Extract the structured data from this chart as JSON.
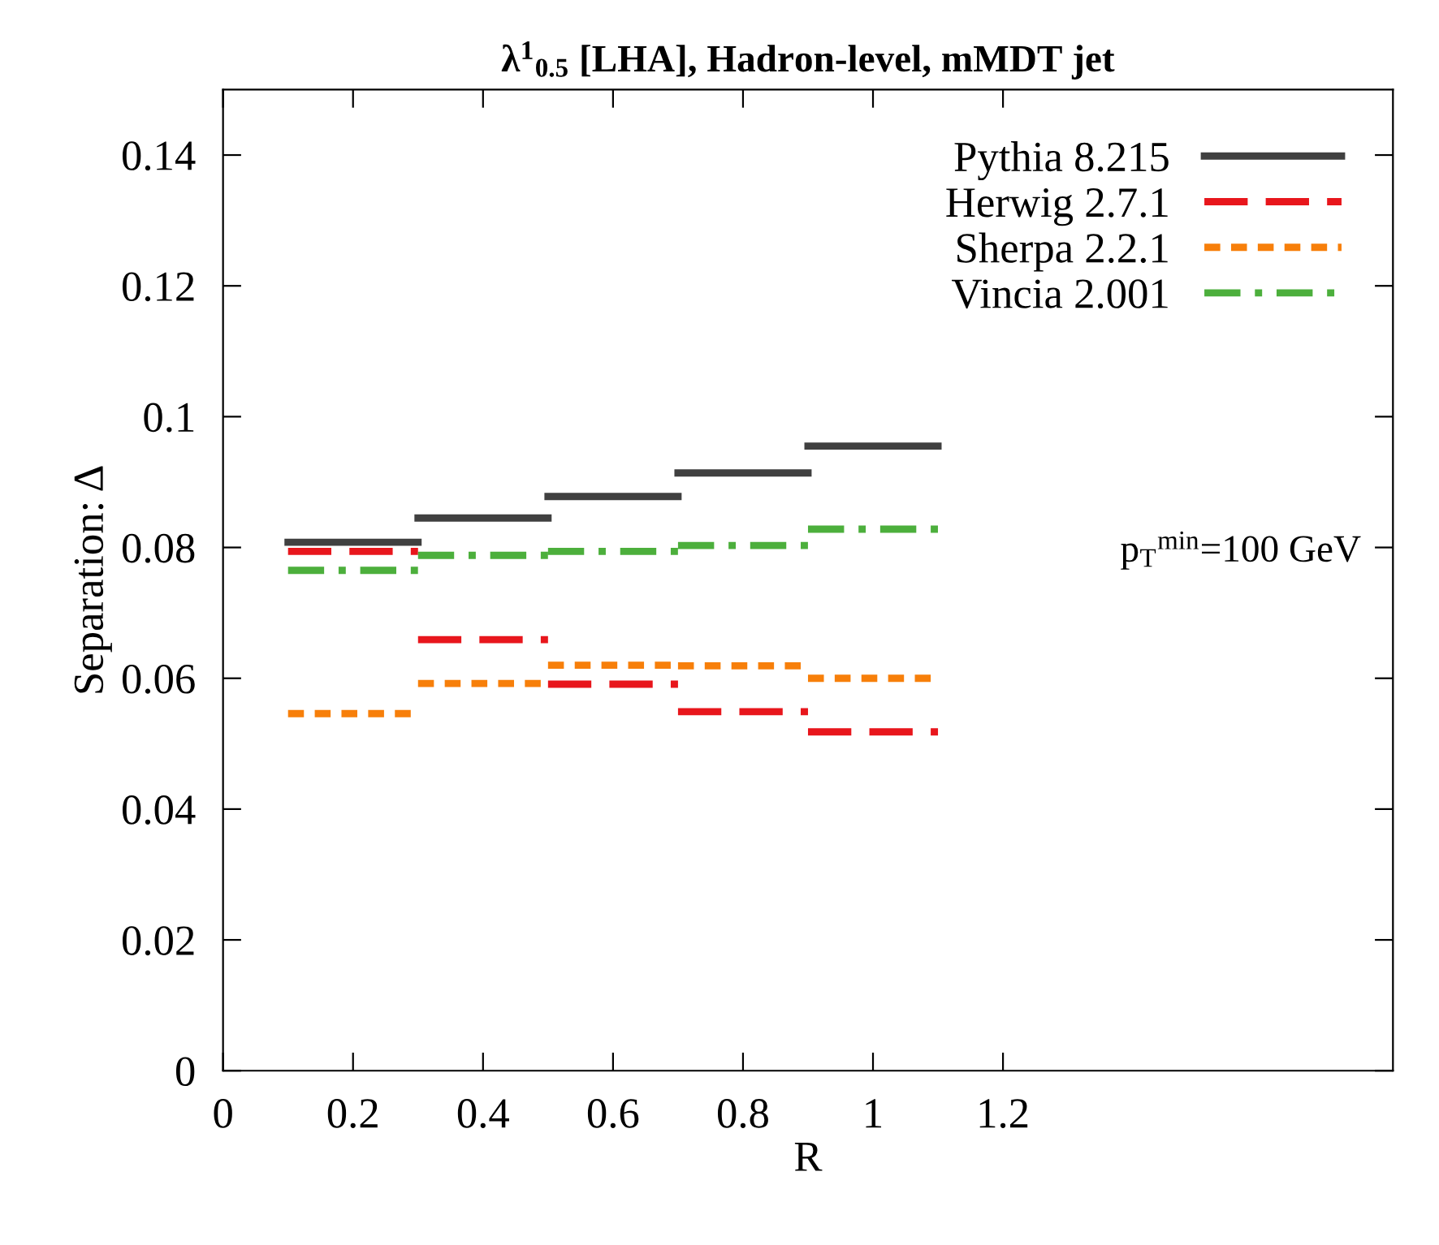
{
  "chart_data": {
    "type": "line",
    "title": "λ$^{1}$$_{0.5}$ [LHA], Hadron-level, mMDT jet",
    "xlabel": "R",
    "ylabel": "Separation: Δ",
    "x": [
      0.1,
      0.3,
      null,
      0.3,
      0.5,
      null,
      0.5,
      0.7,
      null,
      0.7,
      0.9,
      null,
      0.9,
      1.1
    ],
    "series": [
      {
        "name": "Pythia 8.215",
        "color": "#404040",
        "line_style": "solid",
        "values": [
          0.0808,
          0.0808,
          null,
          0.0845,
          0.0845,
          null,
          0.0878,
          0.0878,
          null,
          0.0914,
          0.0914,
          null,
          0.0955,
          0.0955
        ]
      },
      {
        "name": "Herwig 2.7.1",
        "color": "#e8161c",
        "line_style": "dashed",
        "values": [
          0.0794,
          0.0794,
          null,
          0.0659,
          0.0659,
          null,
          0.0591,
          0.0591,
          null,
          0.0549,
          0.0549,
          null,
          0.0518,
          0.0518
        ]
      },
      {
        "name": "Sherpa 2.2.1",
        "color": "#f77f0a",
        "line_style": "dotted",
        "values": [
          0.0546,
          0.0546,
          null,
          0.0592,
          0.0592,
          null,
          0.062,
          0.062,
          null,
          0.0619,
          0.0619,
          null,
          0.06,
          0.06
        ]
      },
      {
        "name": "Vincia 2.001",
        "color": "#4caf3c",
        "line_style": "dashdot",
        "values": [
          0.0765,
          0.0765,
          null,
          0.0788,
          0.0788,
          null,
          0.0794,
          0.0794,
          null,
          0.0803,
          0.0803,
          null,
          0.0828,
          0.0828
        ]
      }
    ],
    "annotations": [
      "p$_{T}$$^{min}$=100 GeV"
    ],
    "xlim": [
      0,
      1.8
    ],
    "ylim": [
      0,
      0.15
    ],
    "xticks": [
      0,
      0.2,
      0.4,
      0.6,
      0.8,
      1,
      1.2
    ],
    "yticks": [
      0,
      0.02,
      0.04,
      0.06,
      0.08,
      0.1,
      0.12,
      0.14
    ],
    "grid": false,
    "legend": "top right"
  }
}
